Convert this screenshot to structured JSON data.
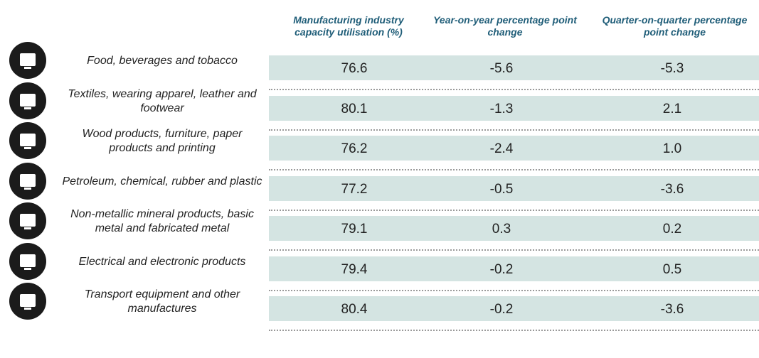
{
  "header": {
    "columns": [
      "Manufacturing industry capacity utilisation (%)",
      "Year-on-year percentage point change",
      "Quarter-on-quarter percentage point change"
    ]
  },
  "table": {
    "rows": [
      [
        "Food, beverages and tobacco",
        "76.6",
        "-5.6",
        "-5.3"
      ],
      [
        "Textiles, wearing apparel, leather and footwear",
        "80.1",
        "-1.3",
        "2.1"
      ],
      [
        "Wood products, furniture, paper products and printing",
        "76.2",
        "-2.4",
        "1.0"
      ],
      [
        "Petroleum, chemical, rubber and plastic",
        "77.2",
        "-0.5",
        "-3.6"
      ],
      [
        "Non-metallic mineral products, basic metal and fabricated metal",
        "79.1",
        "0.3",
        "0.2"
      ],
      [
        "Electrical and electronic products",
        "79.4",
        "-0.2",
        "0.5"
      ],
      [
        "Transport equipment and other manufactures",
        "80.4",
        "-0.2",
        "-3.6"
      ]
    ]
  }
}
